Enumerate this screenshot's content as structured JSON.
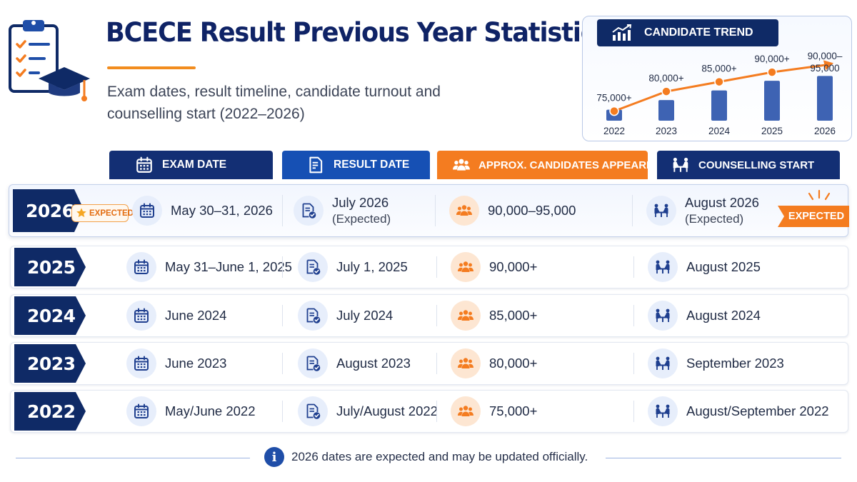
{
  "header": {
    "title": "BCECE Result Previous Year Statistics",
    "subtitle_line1": "Exam dates, result timeline, candidate turnout and",
    "subtitle_line2": "counselling start (2022–2026)",
    "logo_icon": "clipboard-graduation-cap-icon"
  },
  "trend": {
    "title": "CANDIDATE TREND",
    "icon": "chart-up-icon",
    "chart_data": {
      "type": "bar",
      "title": "CANDIDATE TREND",
      "categories": [
        "2022",
        "2023",
        "2024",
        "2025",
        "2026"
      ],
      "values": [
        75000,
        80000,
        85000,
        90000,
        92500
      ],
      "labels": [
        "75,000+",
        "80,000+",
        "85,000+",
        "90,000+",
        "90,000–\n95,000"
      ],
      "bar_color": "#3e63b3",
      "line_color": "#f47c20",
      "trend_line": true
    }
  },
  "columns": {
    "exam": "EXAM DATE",
    "result": "RESULT DATE",
    "candidates": "APPROX. CANDIDATES APPEARED",
    "counselling": "COUNSELLING START"
  },
  "rows": [
    {
      "year": "2026",
      "badge": "EXPECTED",
      "exam": "May 30–31, 2026",
      "result": "July 2026",
      "result_note": "(Expected)",
      "candidates": "90,000–95,000",
      "counselling": "August 2026",
      "counselling_note": "(Expected)",
      "ribbon": "EXPECTED"
    },
    {
      "year": "2025",
      "exam": "May 31–June 1, 2025",
      "result": "July 1, 2025",
      "candidates": "90,000+",
      "counselling": "August 2025"
    },
    {
      "year": "2024",
      "exam": "June 2024",
      "result": "July 2024",
      "candidates": "85,000+",
      "counselling": "August 2024"
    },
    {
      "year": "2023",
      "exam": "June 2023",
      "result": "August 2023",
      "candidates": "80,000+",
      "counselling": "September 2023"
    },
    {
      "year": "2022",
      "exam": "May/June 2022",
      "result": "July/August 2022",
      "candidates": "75,000+",
      "counselling": "August/September 2022"
    }
  ],
  "footer": {
    "note": "2026 dates are expected and may be updated officially.",
    "icon": "info-icon"
  },
  "colors": {
    "navy": "#0f2a66",
    "blue": "#1650b4",
    "orange": "#f47c20"
  }
}
